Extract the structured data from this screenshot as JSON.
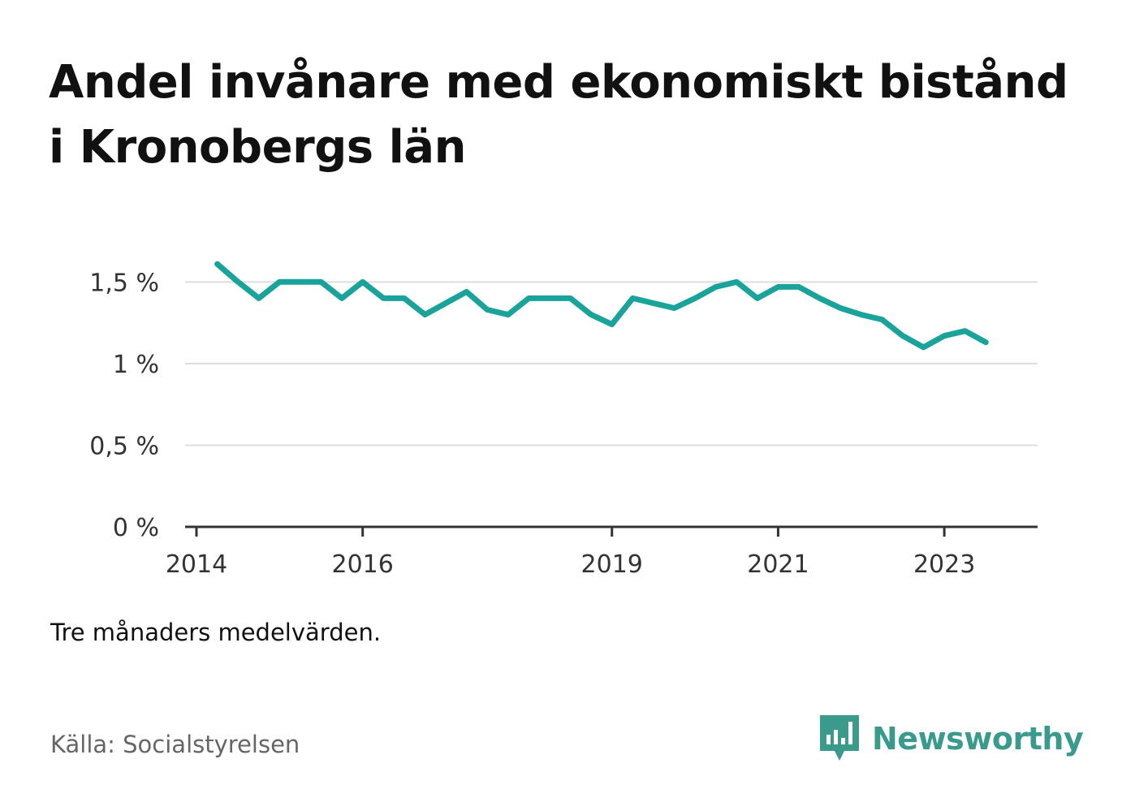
{
  "title": "Andel invånare med ekonomiskt bistånd i Kronobergs län",
  "subtitle": "Tre månaders medelvärden.",
  "source": "Källa: Socialstyrelsen",
  "brand": {
    "name": "Newsworthy",
    "icon": "bar-chart-speech-bubble-icon",
    "color": "#3a9a8c"
  },
  "colors": {
    "line": "#1aa39a",
    "grid": "#dddddd",
    "axis": "#333333"
  },
  "chart_data": {
    "type": "line",
    "title": "Andel invånare med ekonomiskt bistånd i Kronobergs län",
    "xlabel": "",
    "ylabel": "",
    "xticks": [
      "2014",
      "2016",
      "2019",
      "2021",
      "2023"
    ],
    "yticks": [
      "0 %",
      "0,5 %",
      "1 %",
      "1,5 %"
    ],
    "ylim": [
      0,
      1.8
    ],
    "xlim": [
      "2014-01",
      "2024-02"
    ],
    "grid": true,
    "legend": "none",
    "series": [
      {
        "name": "",
        "x": [
          "2014-04",
          "2014-07",
          "2014-10",
          "2015-01",
          "2015-04",
          "2015-07",
          "2015-10",
          "2016-01",
          "2016-04",
          "2016-07",
          "2016-10",
          "2017-01",
          "2017-04",
          "2017-07",
          "2017-10",
          "2018-01",
          "2018-04",
          "2018-07",
          "2018-10",
          "2019-01",
          "2019-04",
          "2019-07",
          "2019-10",
          "2020-01",
          "2020-04",
          "2020-07",
          "2020-10",
          "2021-01",
          "2021-04",
          "2021-07",
          "2021-10",
          "2022-01",
          "2022-04",
          "2022-07",
          "2022-10",
          "2023-01",
          "2023-04",
          "2023-07"
        ],
        "values": [
          1.61,
          1.5,
          1.4,
          1.5,
          1.5,
          1.5,
          1.4,
          1.5,
          1.4,
          1.4,
          1.3,
          1.37,
          1.44,
          1.33,
          1.3,
          1.4,
          1.4,
          1.4,
          1.3,
          1.24,
          1.4,
          1.37,
          1.34,
          1.4,
          1.47,
          1.5,
          1.4,
          1.47,
          1.47,
          1.4,
          1.34,
          1.3,
          1.27,
          1.17,
          1.1,
          1.17,
          1.2,
          1.13
        ]
      }
    ]
  }
}
